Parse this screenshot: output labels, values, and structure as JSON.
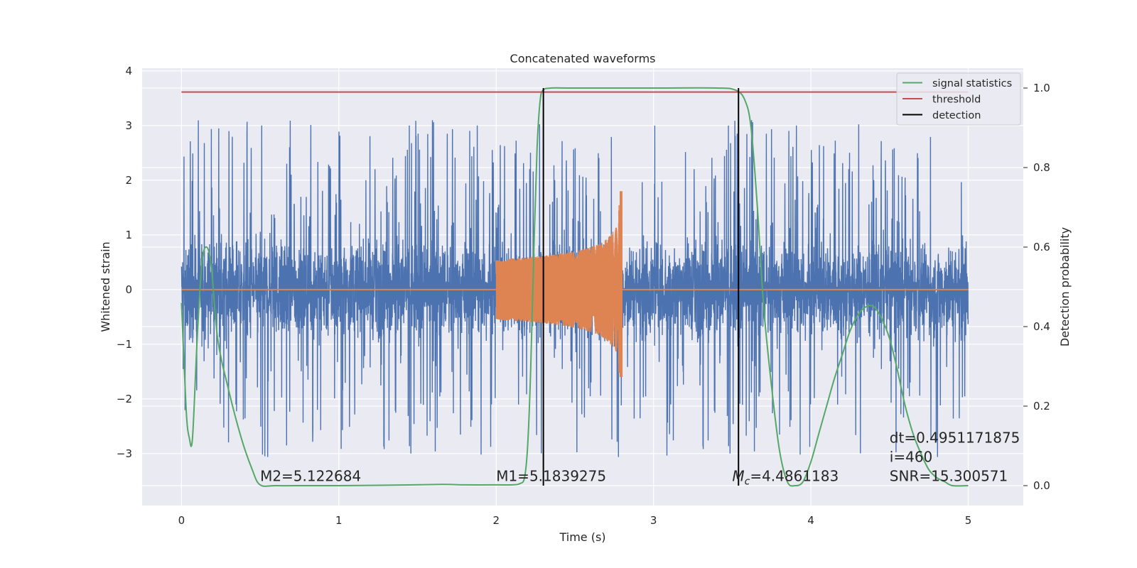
{
  "chart_data": {
    "type": "line",
    "title": "Concatenated waveforms",
    "xlabel": "Time (s)",
    "ylabel": "Whitened strain",
    "y2label": "Detection probability",
    "xlim": [
      -0.25,
      5.35
    ],
    "ylim": [
      -3.95,
      4.05
    ],
    "y2lim": [
      -0.05,
      1.05
    ],
    "x_ticks": [
      0,
      1,
      2,
      3,
      4,
      5
    ],
    "x_tick_labels": [
      "0",
      "1",
      "2",
      "3",
      "4",
      "5"
    ],
    "y_ticks": [
      -3,
      -2,
      -1,
      0,
      1,
      2,
      3,
      4
    ],
    "y_tick_labels": [
      "−3",
      "−2",
      "−1",
      "0",
      "1",
      "2",
      "3",
      "4"
    ],
    "y2_ticks": [
      0.0,
      0.2,
      0.4,
      0.6,
      0.8,
      1.0
    ],
    "y2_tick_labels": [
      "0.0",
      "0.2",
      "0.4",
      "0.6",
      "0.8",
      "1.0"
    ],
    "grid": true,
    "legend_position": "top-right",
    "legend": [
      "signal statistics",
      "threshold",
      "detection"
    ],
    "colors": {
      "strain": "#4c72b0",
      "waveform": "#dd8452",
      "signal_statistics": "#55a868",
      "threshold": "#c44e52",
      "detection": "#000000",
      "background": "#eaeaf2",
      "grid": "#ffffff"
    },
    "strain": {
      "x_range": [
        0,
        5
      ],
      "core_amplitude": 0.75,
      "peak_range": [
        -3.5,
        3.4
      ]
    },
    "waveform": {
      "x_start": 2.0,
      "x_end": 2.8,
      "start_amplitude": 0.55,
      "peak_amplitude": 1.8,
      "min_amplitude": -1.6
    },
    "signal_statistics": {
      "x": [
        0.0,
        0.03,
        0.05,
        0.07,
        0.1,
        0.13,
        0.16,
        0.19,
        0.23,
        0.3,
        0.38,
        0.45,
        0.5,
        0.6,
        0.8,
        1.0,
        1.3,
        1.65,
        1.8,
        2.0,
        2.1,
        2.15,
        2.18,
        2.2,
        2.22,
        2.24,
        2.26,
        2.28,
        2.3,
        2.35,
        2.5,
        3.0,
        3.4,
        3.52,
        3.58,
        3.62,
        3.66,
        3.7,
        3.75,
        3.8,
        3.85,
        3.9,
        3.95,
        4.0,
        4.05,
        4.1,
        4.15,
        4.2,
        4.25,
        4.3,
        4.35,
        4.4,
        4.45,
        4.5,
        4.55,
        4.6,
        4.65,
        4.7,
        4.75,
        4.8,
        4.85,
        4.9,
        5.0
      ],
      "y": [
        0.46,
        0.19,
        0.12,
        0.12,
        0.37,
        0.56,
        0.6,
        0.55,
        0.37,
        0.24,
        0.12,
        0.04,
        0.002,
        0.0,
        0.0,
        0.0,
        0.001,
        0.003,
        0.002,
        0.002,
        0.002,
        0.005,
        0.02,
        0.1,
        0.3,
        0.6,
        0.85,
        0.97,
        0.995,
        1.0,
        1.0,
        1.0,
        1.0,
        0.995,
        0.97,
        0.9,
        0.7,
        0.45,
        0.25,
        0.09,
        0.01,
        0.0,
        0.01,
        0.06,
        0.13,
        0.2,
        0.27,
        0.33,
        0.39,
        0.43,
        0.45,
        0.45,
        0.42,
        0.37,
        0.29,
        0.2,
        0.13,
        0.08,
        0.04,
        0.02,
        0.01,
        0.0,
        0.0
      ]
    },
    "threshold": {
      "x": [
        0,
        5
      ],
      "value": 0.99
    },
    "detections": [
      2.3,
      3.54
    ],
    "annotations": [
      {
        "text": "M2=5.122684",
        "x": 0.5,
        "y": -3.5
      },
      {
        "text": "M1=5.1839275",
        "x": 2.0,
        "y": -3.5
      },
      {
        "text_subscript_base": "M",
        "text_subscript": "c",
        "text_rest": "=4.4861183",
        "x": 3.5,
        "y": -3.5
      },
      {
        "text": "SNR=15.300571",
        "x": 4.5,
        "y": -3.5
      },
      {
        "text": " i=460",
        "x": 4.5,
        "y": -3.15
      },
      {
        "text": "dt=0.4951171875",
        "x": 4.5,
        "y": -2.8
      }
    ]
  }
}
